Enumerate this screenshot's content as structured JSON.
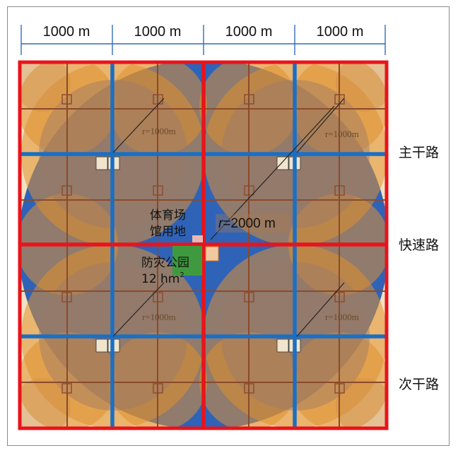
{
  "dimension_labels": [
    "1000 m",
    "1000 m",
    "1000 m",
    "1000 m"
  ],
  "road_labels": {
    "arterial": "主干路",
    "expressway": "快速路",
    "secondary": "次干路"
  },
  "stadium_label": [
    "体育场",
    "馆用地"
  ],
  "park_label": {
    "name": "防灾公园",
    "area": "12 hm",
    "area_superscript": "2"
  },
  "big_radius_label": {
    "prefix": "r",
    "value": "=2000 m"
  },
  "small_radius_labels": [
    "r=1000m",
    "r=1000m",
    "r=1000m",
    "r=1000m"
  ],
  "colors": {
    "expressway": "#e8141c",
    "arterial": "#1a6fc4",
    "secondary": "#8b4a2b",
    "coverage_orange": "#e0902e",
    "coverage_blue": "#2f63b8",
    "park_green": "#3f9a3f",
    "stadium_pink": "#e9b7b0"
  }
}
